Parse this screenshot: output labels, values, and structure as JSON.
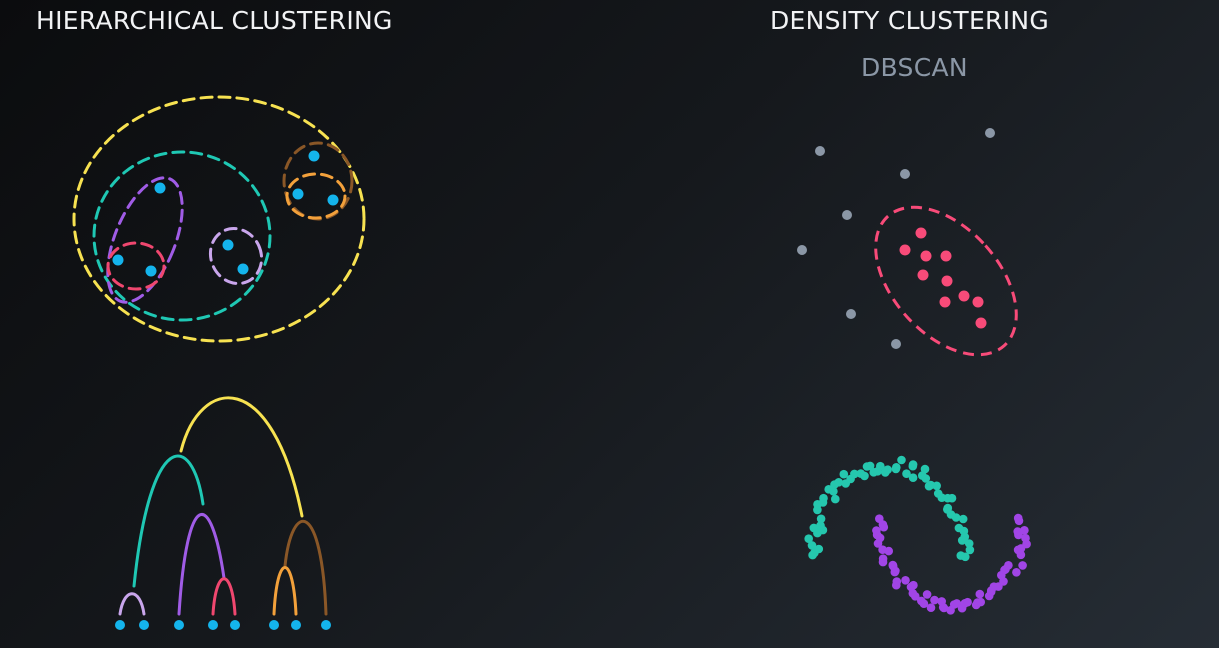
{
  "hierarchical": {
    "title": "HIERARCHICAL CLUSTERING"
  },
  "density": {
    "title": "DENSITY CLUSTERING",
    "subtitle": "DBSCAN"
  },
  "colors": {
    "point": "#14b4ec",
    "yellow": "#f7e251",
    "teal": "#1fc8b4",
    "purple": "#a05ce6",
    "pink": "#f0476f",
    "lavender": "#c9a6ec",
    "orange": "#f3a13b",
    "brown": "#8a5727",
    "noise": "#8b97a6",
    "dbscan_pink": "#f84b79",
    "dbscan_teal": "#25c7ae",
    "dbscan_purple": "#a145e6"
  }
}
